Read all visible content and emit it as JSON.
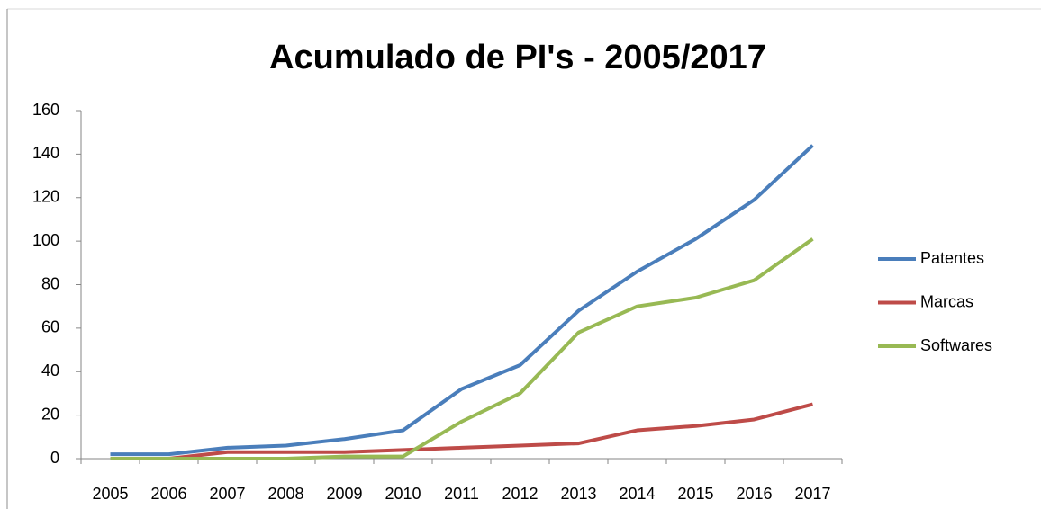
{
  "chart_data": {
    "type": "line",
    "title": "Acumulado de PI's - 2005/2017",
    "categories": [
      "2005",
      "2006",
      "2007",
      "2008",
      "2009",
      "2010",
      "2011",
      "2012",
      "2013",
      "2014",
      "2015",
      "2016",
      "2017"
    ],
    "series": [
      {
        "name": "Patentes",
        "color": "#4a7ebb",
        "values": [
          2,
          2,
          5,
          6,
          9,
          13,
          32,
          43,
          68,
          86,
          101,
          119,
          144
        ]
      },
      {
        "name": "Marcas",
        "color": "#be4b48",
        "values": [
          0,
          0,
          3,
          3,
          3,
          4,
          5,
          6,
          7,
          13,
          15,
          18,
          25
        ]
      },
      {
        "name": "Softwares",
        "color": "#98b954",
        "values": [
          0,
          0,
          0,
          0,
          1,
          1,
          17,
          30,
          58,
          70,
          74,
          82,
          101
        ]
      }
    ],
    "ylim": [
      0,
      160
    ],
    "yticks": [
      0,
      20,
      40,
      60,
      80,
      100,
      120,
      140,
      160
    ],
    "grid": false,
    "legend": "right"
  }
}
